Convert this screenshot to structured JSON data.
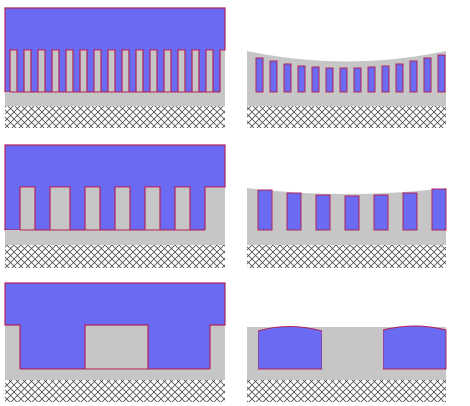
{
  "figure": {
    "description_visible_text": "",
    "colors": {
      "background": "#ffffff",
      "substrate": "#c6c6c6",
      "fill": "#6a6af2",
      "outline": "#b2245a",
      "hatch": "#505050"
    },
    "panels": [
      {
        "row": 1,
        "side": "left",
        "state": "overfilled",
        "trench_count": 14
      },
      {
        "row": 1,
        "side": "right",
        "state": "polished-dished",
        "trench_count": 14
      },
      {
        "row": 2,
        "side": "left",
        "state": "overfilled",
        "trench_count": 7
      },
      {
        "row": 2,
        "side": "right",
        "state": "polished-dished",
        "trench_count": 7
      },
      {
        "row": 3,
        "side": "left",
        "state": "overfilled",
        "trench_count": 2
      },
      {
        "row": 3,
        "side": "right",
        "state": "polished-dished",
        "trench_count": 2
      }
    ]
  }
}
